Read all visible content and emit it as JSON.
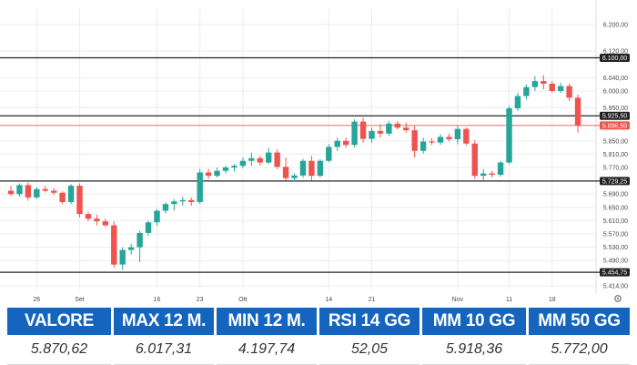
{
  "colors": {
    "up": "#26a69a",
    "down": "#ef5350",
    "level": "#222222",
    "grid": "#ececec",
    "header": "#1565c0"
  },
  "chart_data": {
    "type": "candlestick",
    "ylim": [
      5414,
      6200
    ],
    "y_ticks": [
      "6.200,00",
      "6.120,00",
      "6.040,00",
      "6.000,00",
      "5.950,00",
      "5.850,00",
      "5.810,00",
      "5.770,00",
      "5.690,00",
      "5.650,00",
      "5.610,00",
      "5.570,00",
      "5.530,00",
      "5.490,00",
      "5.414,00"
    ],
    "y_tick_values": [
      6200,
      6120,
      6040,
      6000,
      5950,
      5850,
      5810,
      5770,
      5690,
      5650,
      5610,
      5570,
      5530,
      5490,
      5414
    ],
    "x_ticks": [
      "26",
      "Set",
      "16",
      "23",
      "Ott",
      "14",
      "21",
      "Nov",
      "11",
      "18"
    ],
    "x_tick_index": [
      3,
      8,
      17,
      22,
      27,
      37,
      42,
      52,
      58,
      63
    ],
    "horizontal_levels": [
      {
        "label": "6.100,00",
        "value": 6100,
        "style": "line"
      },
      {
        "label": "5.925,50",
        "value": 5925.5,
        "style": "line"
      },
      {
        "label": "5.896,50",
        "value": 5896.5,
        "style": "current"
      },
      {
        "label": "5.729,25",
        "value": 5729.25,
        "style": "line"
      },
      {
        "label": "5.454,75",
        "value": 5454.75,
        "style": "line"
      }
    ],
    "candles": [
      [
        5700,
        5715,
        5685,
        5690
      ],
      [
        5690,
        5722,
        5682,
        5717
      ],
      [
        5717,
        5725,
        5670,
        5680
      ],
      [
        5680,
        5712,
        5675,
        5705
      ],
      [
        5705,
        5715,
        5695,
        5700
      ],
      [
        5700,
        5708,
        5688,
        5694
      ],
      [
        5694,
        5698,
        5660,
        5666
      ],
      [
        5666,
        5720,
        5660,
        5715
      ],
      [
        5715,
        5722,
        5620,
        5630
      ],
      [
        5630,
        5636,
        5608,
        5616
      ],
      [
        5616,
        5628,
        5596,
        5608
      ],
      [
        5608,
        5616,
        5592,
        5596
      ],
      [
        5596,
        5608,
        5468,
        5478
      ],
      [
        5478,
        5530,
        5462,
        5522
      ],
      [
        5522,
        5540,
        5508,
        5530
      ],
      [
        5530,
        5580,
        5485,
        5573
      ],
      [
        5573,
        5610,
        5565,
        5605
      ],
      [
        5605,
        5645,
        5595,
        5640
      ],
      [
        5640,
        5665,
        5632,
        5660
      ],
      [
        5660,
        5675,
        5640,
        5668
      ],
      [
        5668,
        5682,
        5655,
        5672
      ],
      [
        5672,
        5680,
        5655,
        5666
      ],
      [
        5666,
        5765,
        5660,
        5755
      ],
      [
        5755,
        5765,
        5735,
        5745
      ],
      [
        5745,
        5770,
        5740,
        5760
      ],
      [
        5760,
        5775,
        5752,
        5770
      ],
      [
        5770,
        5780,
        5758,
        5775
      ],
      [
        5775,
        5800,
        5768,
        5790
      ],
      [
        5790,
        5815,
        5775,
        5798
      ],
      [
        5798,
        5805,
        5775,
        5785
      ],
      [
        5785,
        5830,
        5780,
        5815
      ],
      [
        5815,
        5825,
        5765,
        5772
      ],
      [
        5772,
        5800,
        5730,
        5738
      ],
      [
        5738,
        5752,
        5728,
        5746
      ],
      [
        5746,
        5796,
        5740,
        5790
      ],
      [
        5790,
        5805,
        5730,
        5745
      ],
      [
        5745,
        5795,
        5740,
        5790
      ],
      [
        5790,
        5840,
        5785,
        5832
      ],
      [
        5832,
        5860,
        5820,
        5850
      ],
      [
        5850,
        5860,
        5830,
        5838
      ],
      [
        5838,
        5915,
        5830,
        5908
      ],
      [
        5908,
        5920,
        5845,
        5856
      ],
      [
        5856,
        5890,
        5845,
        5880
      ],
      [
        5880,
        5900,
        5860,
        5872
      ],
      [
        5872,
        5910,
        5865,
        5902
      ],
      [
        5902,
        5910,
        5885,
        5890
      ],
      [
        5890,
        5905,
        5875,
        5882
      ],
      [
        5882,
        5895,
        5800,
        5820
      ],
      [
        5820,
        5860,
        5812,
        5848
      ],
      [
        5848,
        5858,
        5838,
        5845
      ],
      [
        5845,
        5870,
        5838,
        5862
      ],
      [
        5862,
        5872,
        5848,
        5855
      ],
      [
        5855,
        5895,
        5840,
        5886
      ],
      [
        5886,
        5890,
        5836,
        5842
      ],
      [
        5842,
        5852,
        5735,
        5745
      ],
      [
        5745,
        5765,
        5730,
        5752
      ],
      [
        5752,
        5760,
        5740,
        5748
      ],
      [
        5748,
        5790,
        5742,
        5785
      ],
      [
        5785,
        5955,
        5780,
        5948
      ],
      [
        5948,
        5995,
        5940,
        5985
      ],
      [
        5985,
        6020,
        5975,
        6012
      ],
      [
        6012,
        6045,
        6000,
        6030
      ],
      [
        6030,
        6048,
        6005,
        6022
      ],
      [
        6022,
        6030,
        5995,
        6000
      ],
      [
        6000,
        6025,
        5995,
        6015
      ],
      [
        6015,
        6022,
        5970,
        5980
      ],
      [
        5980,
        5990,
        5875,
        5896
      ]
    ]
  },
  "stats": [
    {
      "label": "VALORE",
      "value": "5.870,62"
    },
    {
      "label": "MAX 12 M.",
      "value": "6.017,31"
    },
    {
      "label": "MIN 12 M.",
      "value": "4.197,74"
    },
    {
      "label": "RSI 14 GG",
      "value": "52,05"
    },
    {
      "label": "MM 10 GG",
      "value": "5.918,36"
    },
    {
      "label": "MM 50 GG",
      "value": "5.772,00"
    }
  ],
  "settings_icon": "gear-icon"
}
